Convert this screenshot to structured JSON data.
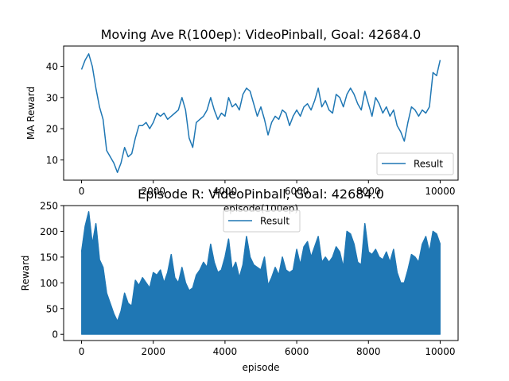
{
  "chart_data": [
    {
      "type": "line",
      "title": "Moving Ave R(100ep): VideoPinball, Goal: 42684.0",
      "xlabel": "episode(100ep)",
      "ylabel": "MA Reward",
      "xlim": [
        -500,
        10500
      ],
      "ylim": [
        3.5,
        46.5
      ],
      "xticks": [
        0,
        2000,
        4000,
        6000,
        8000,
        10000
      ],
      "yticks": [
        10,
        20,
        30,
        40
      ],
      "legend": "lower-right",
      "color": "#1f77b4",
      "series": [
        {
          "name": "Result",
          "x": [
            0,
            100,
            200,
            300,
            400,
            500,
            600,
            700,
            800,
            900,
            1000,
            1100,
            1200,
            1300,
            1400,
            1500,
            1600,
            1700,
            1800,
            1900,
            2000,
            2100,
            2200,
            2300,
            2400,
            2500,
            2600,
            2700,
            2800,
            2900,
            3000,
            3100,
            3200,
            3300,
            3400,
            3500,
            3600,
            3700,
            3800,
            3900,
            4000,
            4100,
            4200,
            4300,
            4400,
            4500,
            4600,
            4700,
            4800,
            4900,
            5000,
            5100,
            5200,
            5300,
            5400,
            5500,
            5600,
            5700,
            5800,
            5900,
            6000,
            6100,
            6200,
            6300,
            6400,
            6500,
            6600,
            6700,
            6800,
            6900,
            7000,
            7100,
            7200,
            7300,
            7400,
            7500,
            7600,
            7700,
            7800,
            7900,
            8000,
            8100,
            8200,
            8300,
            8400,
            8500,
            8600,
            8700,
            8800,
            8900,
            9000,
            9100,
            9200,
            9300,
            9400,
            9500,
            9600,
            9700,
            9800,
            9900,
            10000
          ],
          "y": [
            39,
            42,
            44,
            40,
            33,
            27,
            23,
            13,
            11,
            9,
            6,
            9,
            14,
            11,
            12,
            17,
            21,
            21,
            22,
            20,
            22,
            25,
            24,
            25,
            23,
            24,
            25,
            26,
            30,
            26,
            17,
            14,
            22,
            23,
            24,
            26,
            30,
            26,
            23,
            25,
            24,
            30,
            27,
            28,
            26,
            31,
            33,
            32,
            28,
            24,
            27,
            23,
            18,
            22,
            24,
            23,
            26,
            25,
            21,
            24,
            26,
            24,
            27,
            28,
            26,
            29,
            33,
            27,
            29,
            26,
            25,
            31,
            30,
            27,
            31,
            33,
            31,
            28,
            26,
            32,
            28,
            24,
            30,
            28,
            25,
            27,
            24,
            26,
            21,
            19,
            16,
            22,
            27,
            26,
            24,
            26,
            25,
            27,
            38,
            37,
            42
          ]
        }
      ]
    },
    {
      "type": "line",
      "title": "Episode R: VideoPinball, Goal: 42684.0",
      "xlabel": "episode",
      "ylabel": "Reward",
      "xlim": [
        -500,
        10500
      ],
      "ylim": [
        -12,
        250
      ],
      "xticks": [
        0,
        2000,
        4000,
        6000,
        8000,
        10000
      ],
      "yticks": [
        0,
        50,
        100,
        150,
        200,
        250
      ],
      "legend": "upper-center",
      "color": "#1f77b4",
      "series": [
        {
          "name": "Result",
          "x": [
            0,
            100,
            200,
            300,
            400,
            500,
            600,
            700,
            800,
            900,
            1000,
            1100,
            1200,
            1300,
            1400,
            1500,
            1600,
            1700,
            1800,
            1900,
            2000,
            2100,
            2200,
            2300,
            2400,
            2500,
            2600,
            2700,
            2800,
            2900,
            3000,
            3100,
            3200,
            3300,
            3400,
            3500,
            3600,
            3700,
            3800,
            3900,
            4000,
            4100,
            4200,
            4300,
            4400,
            4500,
            4600,
            4700,
            4800,
            4900,
            5000,
            5100,
            5200,
            5300,
            5400,
            5500,
            5600,
            5700,
            5800,
            5900,
            6000,
            6100,
            6200,
            6300,
            6400,
            6500,
            6600,
            6700,
            6800,
            6900,
            7000,
            7100,
            7200,
            7300,
            7400,
            7500,
            7600,
            7700,
            7800,
            7900,
            8000,
            8100,
            8200,
            8300,
            8400,
            8500,
            8600,
            8700,
            8800,
            8900,
            9000,
            9100,
            9200,
            9300,
            9400,
            9500,
            9600,
            9700,
            9800,
            9900,
            10000
          ],
          "y": [
            160,
            210,
            238,
            175,
            215,
            145,
            130,
            80,
            60,
            40,
            25,
            45,
            80,
            60,
            55,
            105,
            95,
            110,
            100,
            90,
            120,
            115,
            125,
            100,
            120,
            155,
            110,
            100,
            130,
            100,
            85,
            90,
            115,
            125,
            140,
            130,
            175,
            140,
            120,
            125,
            150,
            185,
            125,
            140,
            110,
            135,
            190,
            150,
            135,
            130,
            125,
            150,
            95,
            110,
            130,
            115,
            150,
            125,
            120,
            125,
            165,
            135,
            170,
            180,
            150,
            170,
            190,
            140,
            150,
            140,
            150,
            170,
            160,
            130,
            200,
            195,
            175,
            140,
            135,
            215,
            160,
            155,
            165,
            150,
            145,
            160,
            140,
            165,
            120,
            100,
            100,
            125,
            155,
            150,
            140,
            175,
            190,
            160,
            200,
            195,
            175
          ]
        }
      ]
    }
  ]
}
